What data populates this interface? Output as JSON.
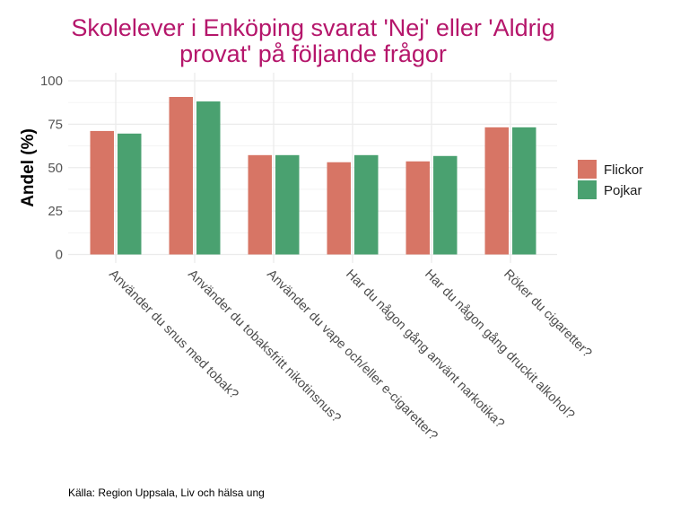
{
  "chart_data": {
    "type": "bar",
    "title": "Skolelever i Enköping svarat 'Nej' eller 'Aldrig provat' på följande frågor",
    "title_lines": [
      "Skolelever i Enköping svarat 'Nej' eller 'Aldrig",
      "provat' på följande frågor"
    ],
    "xlabel": "",
    "ylabel": "Andel (%)",
    "ylim": [
      0,
      100
    ],
    "yticks": [
      0,
      25,
      50,
      75,
      100
    ],
    "grid": true,
    "legend_position": "right",
    "categories": [
      "Använder du snus med tobak?",
      "Använder du tobaksfritt nikotinsnus?",
      "Använder du vape och/eller e-cigaretter?",
      "Har du någon gång använt narkotika?",
      "Har du någon gång druckit alkohol?",
      "Röker du cigaretter?"
    ],
    "series": [
      {
        "name": "Flickor",
        "color": "#d77565",
        "values": [
          71.1,
          90.7,
          57.2,
          53.1,
          53.6,
          73.2
        ]
      },
      {
        "name": "Pojkar",
        "color": "#4aa170",
        "values": [
          69.6,
          88.1,
          57.2,
          57.2,
          56.7,
          73.2
        ]
      }
    ],
    "caption": "Källa: Region Uppsala, Liv och hälsa ung"
  }
}
